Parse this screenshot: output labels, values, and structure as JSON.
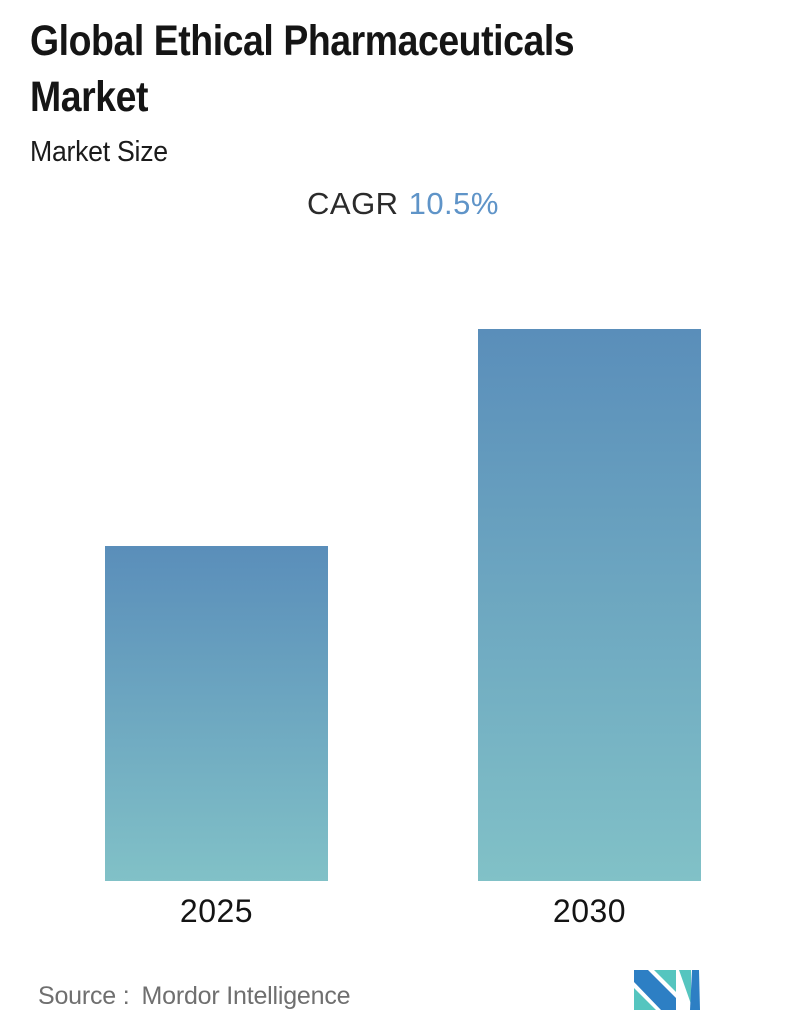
{
  "header": {
    "title": "Global Ethical Pharmaceuticals Market",
    "subtitle": "Market Size",
    "cagr_label": "CAGR",
    "cagr_value": "10.5%"
  },
  "chart_data": {
    "type": "bar",
    "title": "Global Ethical Pharmaceuticals Market",
    "subtitle": "Market Size",
    "annotation": "CAGR 10.5%",
    "cagr_percent": 10.5,
    "categories": [
      "2025",
      "2030"
    ],
    "values_relative": [
      1.0,
      1.65
    ],
    "series": [
      {
        "name": "Market Size",
        "values_relative": [
          1.0,
          1.65
        ]
      }
    ],
    "value_axis_shown": false,
    "value_labels_shown": false,
    "gridlines": false,
    "legend_position": "none",
    "bar_color_top": "#5a8eba",
    "bar_color_bottom": "#81c1c7"
  },
  "footer": {
    "source_label": "Source :",
    "source_value": "Mordor Intelligence"
  },
  "colors": {
    "background": "#ffffff",
    "title_text": "#151515",
    "cagr_value_text": "#5f94c8",
    "axis_label_text": "#141414",
    "source_text": "#6f6f6f",
    "logo_blue": "#2d7fc4",
    "logo_teal": "#55c5bf"
  }
}
